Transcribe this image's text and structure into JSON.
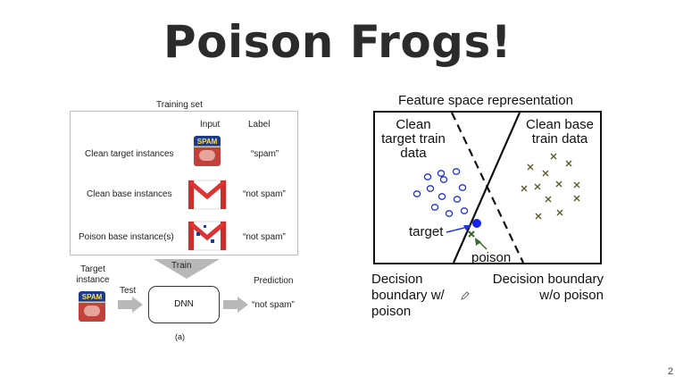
{
  "slide": {
    "title": "Poison Frogs!",
    "page_number": "2"
  },
  "left_figure": {
    "training_set_label": "Training set",
    "input_header": "Input",
    "label_header": "Label",
    "rows": [
      {
        "name": "Clean target instances",
        "label": "“spam”"
      },
      {
        "name": "Clean base instances",
        "label": "“not spam”"
      },
      {
        "name": "Poison base instance(s)",
        "label": "“not spam”"
      }
    ],
    "spam_logo_text": "SPAM",
    "train_label": "Train",
    "target_instance_label": "Target instance",
    "test_label": "Test",
    "dnn_label": "DNN",
    "prediction_label": "Prediction",
    "prediction_value": "“not spam”",
    "caption": "(a)"
  },
  "right_figure": {
    "title": "Feature space representation",
    "clean_target_label": "Clean target train data",
    "clean_base_label": "Clean base train data",
    "target_label": "target",
    "poison_label": "poison",
    "boundary_with_poison": "Decision boundary w/ poison",
    "boundary_without_poison": "Decision boundary w/o poison",
    "colors": {
      "target_circles": "#2233dd",
      "base_crosses": "#5a5a2a",
      "poison": "#3a6a2a"
    }
  }
}
